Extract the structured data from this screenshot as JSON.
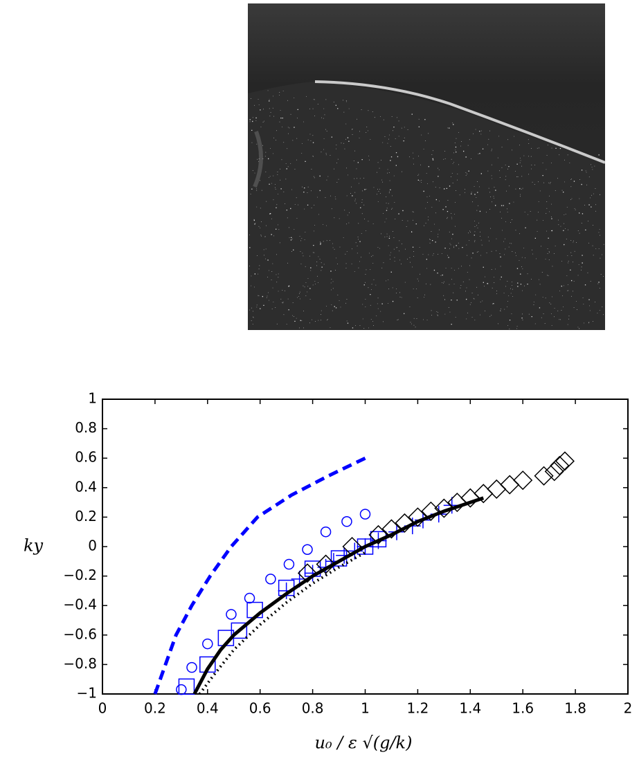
{
  "chart_data": {
    "type": "scatter",
    "xlabel": "u₀ / ε √(g/k)",
    "ylabel": "ky",
    "xlim": [
      0,
      2
    ],
    "ylim": [
      -1,
      1
    ],
    "xticks": [
      0,
      0.2,
      0.4,
      0.6,
      0.8,
      1,
      1.2,
      1.4,
      1.6,
      1.8,
      2
    ],
    "yticks": [
      {
        "value": -1,
        "label": "−1"
      },
      {
        "value": -0.8,
        "label": "−0.8"
      },
      {
        "value": -0.6,
        "label": "−0.6"
      },
      {
        "value": -0.4,
        "label": "−0.4"
      },
      {
        "value": -0.2,
        "label": "−0.2"
      },
      0,
      0.2,
      0.4,
      0.6,
      0.8,
      1
    ],
    "series": [
      {
        "style": "dashed-line",
        "color": "#0000ff",
        "x": [
          0.2,
          0.24,
          0.28,
          0.34,
          0.41,
          0.49,
          0.59,
          0.72,
          0.86,
          1.0
        ],
        "values": [
          -1,
          -0.8,
          -0.6,
          -0.4,
          -0.2,
          0,
          0.2,
          0.35,
          0.48,
          0.6
        ]
      },
      {
        "style": "circle",
        "color": "#0000ff",
        "x": [
          0.3,
          0.34,
          0.4,
          0.49,
          0.56,
          0.64,
          0.71,
          0.78,
          0.85,
          0.93,
          1.0
        ],
        "values": [
          -0.97,
          -0.82,
          -0.66,
          -0.46,
          -0.35,
          -0.22,
          -0.12,
          -0.02,
          0.1,
          0.17,
          0.22
        ]
      },
      {
        "style": "square",
        "color": "#0000ff",
        "x": [
          0.32,
          0.4,
          0.47,
          0.52,
          0.58,
          0.7,
          0.8,
          0.9,
          1.0,
          1.05
        ],
        "values": [
          -0.95,
          -0.8,
          -0.62,
          -0.57,
          -0.43,
          -0.28,
          -0.15,
          -0.08,
          0.0,
          0.05
        ]
      },
      {
        "style": "plus",
        "color": "#0000ff",
        "x": [
          0.7,
          0.75,
          0.8,
          0.85,
          0.88,
          0.92,
          0.96,
          1.0,
          1.05,
          1.12,
          1.18,
          1.22,
          1.28,
          1.33
        ],
        "values": [
          -0.3,
          -0.22,
          -0.18,
          -0.14,
          -0.1,
          -0.06,
          -0.03,
          0.0,
          0.04,
          0.1,
          0.14,
          0.18,
          0.22,
          0.28
        ]
      },
      {
        "style": "diamond",
        "color": "#000000",
        "x": [
          0.78,
          0.85,
          0.95,
          1.05,
          1.1,
          1.15,
          1.2,
          1.25,
          1.3,
          1.35,
          1.4,
          1.45,
          1.5,
          1.55,
          1.6,
          1.68,
          1.72,
          1.74,
          1.76
        ],
        "values": [
          -0.18,
          -0.12,
          0.0,
          0.08,
          0.12,
          0.16,
          0.2,
          0.24,
          0.26,
          0.3,
          0.33,
          0.36,
          0.39,
          0.42,
          0.45,
          0.48,
          0.51,
          0.55,
          0.58
        ]
      },
      {
        "style": "dotted-line",
        "color": "#000000",
        "x": [
          0.37,
          0.42,
          0.5,
          0.6,
          0.7,
          0.8,
          0.9,
          1.0
        ],
        "values": [
          -1,
          -0.88,
          -0.7,
          -0.53,
          -0.38,
          -0.25,
          -0.14,
          -0.04
        ]
      },
      {
        "style": "line",
        "color": "#000000",
        "x": [
          0.35,
          0.4,
          0.45,
          0.5,
          0.6,
          0.7,
          0.8,
          0.9,
          1.0,
          1.1,
          1.2,
          1.3,
          1.45
        ],
        "values": [
          -1,
          -0.83,
          -0.7,
          -0.6,
          -0.45,
          -0.32,
          -0.2,
          -0.1,
          0,
          0.08,
          0.17,
          0.24,
          0.33
        ]
      }
    ]
  }
}
